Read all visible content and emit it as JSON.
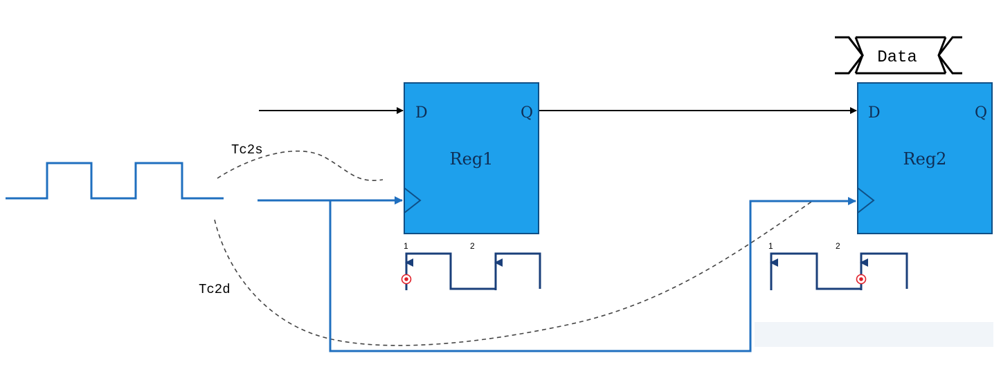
{
  "registers": [
    {
      "name": "Reg1",
      "d_label": "D",
      "q_label": "Q"
    },
    {
      "name": "Reg2",
      "d_label": "D",
      "q_label": "Q"
    }
  ],
  "data_bus": {
    "label": "Data"
  },
  "delays": {
    "to_source": "Tc2s",
    "to_dest": "Tc2d"
  },
  "edge_markers": {
    "reg1": {
      "first": "1",
      "second": "2"
    },
    "reg2": {
      "first": "1",
      "second": "2"
    }
  },
  "colors": {
    "register_fill": "#1ea0ec",
    "register_stroke": "#0f4f86",
    "clock_wire": "#1f6fbf",
    "data_wire": "#000000",
    "delay_path": "#444444",
    "edge_marker": "#e0202a"
  }
}
